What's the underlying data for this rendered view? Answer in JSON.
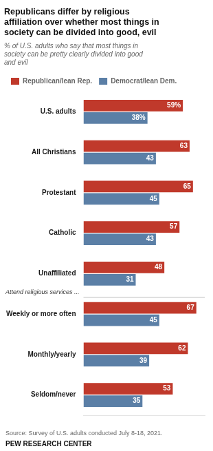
{
  "chart_data": {
    "type": "bar",
    "orientation": "horizontal",
    "title": "Republicans differ by religious\naffiliation over whether most things in\nsociety can be divided into good, evil",
    "subtitle": "% of U.S. adults who say that most things in\nsociety can be pretty clearly divided into good\nand evil",
    "categories": [
      "U.S. adults",
      "All Christians",
      "Protestant",
      "Catholic",
      "Unaffiliated",
      "Weekly or more often",
      "Monthly/yearly",
      "Seldom/never"
    ],
    "series": [
      {
        "name": "Republican/lean Rep.",
        "color": "#c0392b",
        "values": [
          59,
          63,
          65,
          57,
          48,
          67,
          62,
          53
        ],
        "value_labels": [
          "59%",
          "63",
          "65",
          "57",
          "48",
          "67",
          "62",
          "53"
        ]
      },
      {
        "name": "Democrat/lean Dem.",
        "color": "#5b7fa6",
        "values": [
          38,
          43,
          45,
          43,
          31,
          45,
          39,
          35
        ],
        "value_labels": [
          "38%",
          "43",
          "45",
          "43",
          "31",
          "45",
          "39",
          "35"
        ]
      }
    ],
    "xlim": [
      0,
      72
    ],
    "grid": false,
    "legend": "top",
    "data_labels": true,
    "tick_labels": "y",
    "annotations": [
      {
        "text": "Attend religious services ...",
        "before_category": "Weekly or more often"
      },
      {
        "text": "Source: Survey of U.S. adults conducted July 8-18, 2021."
      },
      {
        "text": "PEW RESEARCH CENTER"
      }
    ]
  }
}
